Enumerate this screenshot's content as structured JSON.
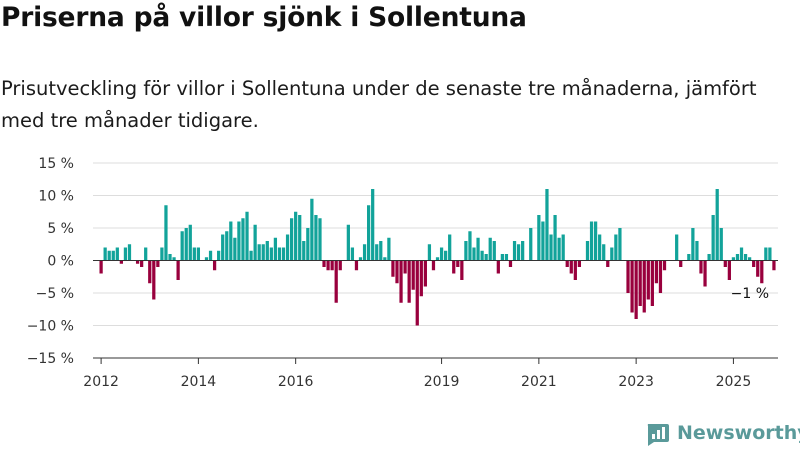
{
  "header": {
    "title": "Priserna på villor sjönk i Sollentuna",
    "subtitle": "Prisutveckling för villor i Sollentuna under de senaste tre månaderna, jämfört med tre månader tidigare."
  },
  "brand": {
    "name": "Newsworthy",
    "icon": "newsworthy-chart-logo-icon",
    "color": "#5a9a9a"
  },
  "colors": {
    "positive": "#12a39a",
    "negative": "#99003d",
    "grid": "#dddddd",
    "zero_line": "#333333"
  },
  "chart_data": {
    "type": "bar",
    "title": "",
    "xlabel": "",
    "ylabel": "",
    "ylim": [
      -15,
      15
    ],
    "yticks": [
      {
        "value": 15,
        "label": "15 %"
      },
      {
        "value": 10,
        "label": "10 %"
      },
      {
        "value": 5,
        "label": "5 %"
      },
      {
        "value": 0,
        "label": "0 %"
      },
      {
        "value": -5,
        "label": "−5 %"
      },
      {
        "value": -10,
        "label": "−10 %"
      },
      {
        "value": -15,
        "label": "−15 %"
      }
    ],
    "xlim": [
      "2011-11",
      "2025-12"
    ],
    "xticks": [
      {
        "date": "2012-01",
        "label": "2012"
      },
      {
        "date": "2014-01",
        "label": "2014"
      },
      {
        "date": "2016-01",
        "label": "2016"
      },
      {
        "date": "2019-01",
        "label": "2019"
      },
      {
        "date": "2021-01",
        "label": "2021"
      },
      {
        "date": "2023-01",
        "label": "2023"
      },
      {
        "date": "2025-01",
        "label": "2025"
      }
    ],
    "annotation": {
      "text": "−1 %",
      "date": "2025-06",
      "value": -1
    },
    "grid": true,
    "legend": "none",
    "series": [
      {
        "start": "2012-01",
        "frequency": "monthly",
        "values": [
          -2,
          2,
          1.5,
          1.5,
          2,
          -0.5,
          2,
          2.5,
          0,
          -0.5,
          -1,
          2,
          -3.5,
          -6,
          -1,
          2,
          8.5,
          1,
          0.5,
          -3,
          4.5,
          5,
          5.5,
          2,
          2,
          0,
          0.5,
          1.5,
          -1.5,
          1.5,
          4,
          4.5,
          6,
          3.5,
          6,
          6.5,
          7.5,
          1.5,
          5.5,
          2.5,
          2.5,
          3,
          2,
          3.5,
          2,
          2,
          4,
          6.5,
          7.5,
          7,
          3,
          5,
          9.5,
          7,
          6.5,
          -1,
          -1.5,
          -1.5,
          -6.5,
          -1.5,
          0,
          5.5,
          2,
          -1.5,
          0.5,
          2.5,
          8.5,
          11,
          2.5,
          3,
          0.5,
          3.5,
          -2.5,
          -3.5,
          -6.5,
          -2,
          -6.5,
          -4.5,
          -10,
          -5.5,
          -4,
          2.5,
          -1.5,
          0.5,
          2,
          1.5,
          4,
          -2,
          -1,
          -3,
          3,
          4.5,
          2,
          3.5,
          1.5,
          1,
          3.5,
          3,
          -2,
          1,
          1,
          -1,
          3,
          2.5,
          3,
          0,
          5,
          0,
          7,
          6,
          11,
          4,
          7,
          3.5,
          4,
          -1,
          -2,
          -3,
          -1,
          0,
          3,
          6,
          6,
          4,
          2.5,
          -1,
          2,
          4,
          5,
          0,
          -5,
          -8,
          -9,
          -7,
          -8,
          -6,
          -7,
          -3.5,
          -5,
          -1.5,
          0,
          0,
          4,
          -1,
          0,
          1,
          5,
          3,
          -2,
          -4,
          1,
          7,
          11,
          5,
          -1,
          -3,
          0.5,
          1,
          2,
          1,
          0.5,
          -1,
          -2.5,
          -3.5,
          2,
          2,
          -1.5
        ]
      }
    ]
  }
}
